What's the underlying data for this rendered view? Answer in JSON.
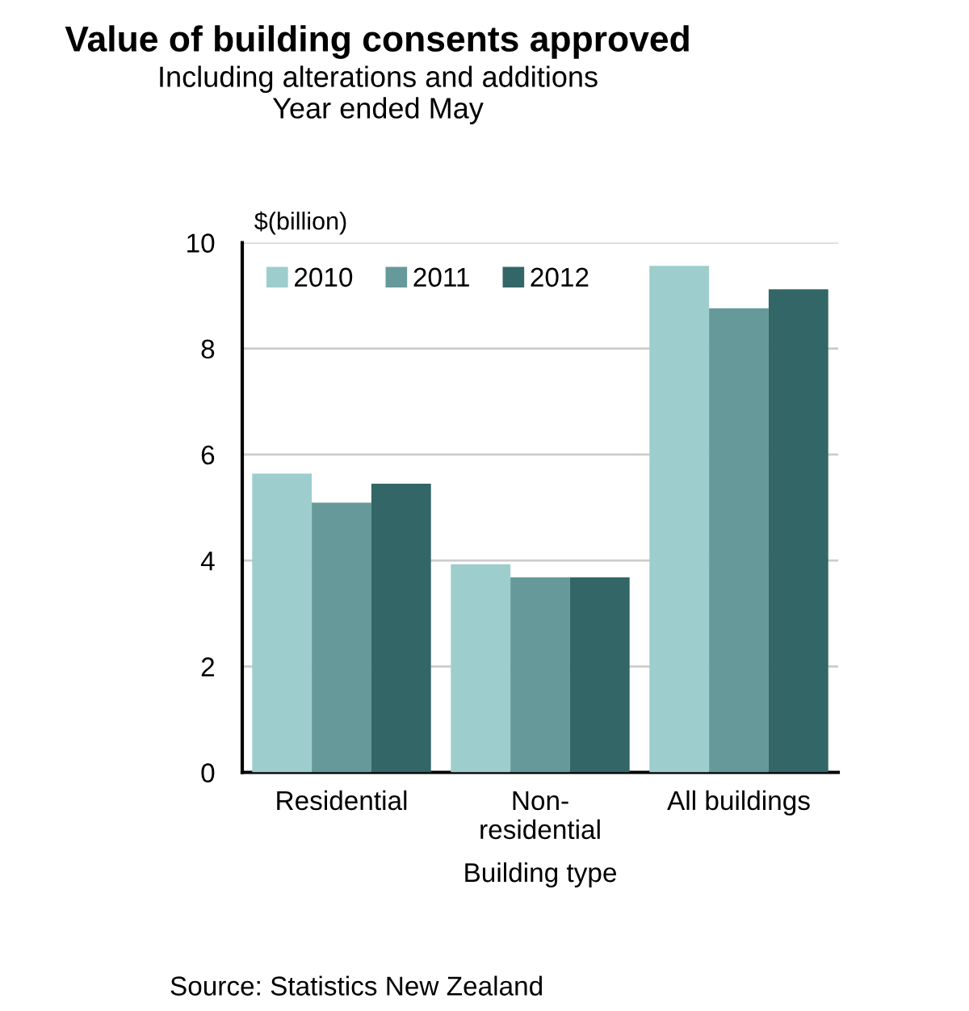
{
  "chart_data": {
    "type": "bar",
    "title": "Value of building consents approved",
    "subtitle": "Including alterations and additions\nYear ended May",
    "ylabel": "$(billion)",
    "xlabel": "Building type",
    "categories": [
      "Residential",
      "Non-\nresidential",
      "All buildings"
    ],
    "series": [
      {
        "name": "2010",
        "color": "#9dcdcd",
        "values": [
          5.64,
          3.93,
          9.56
        ]
      },
      {
        "name": "2011",
        "color": "#669999",
        "values": [
          5.09,
          3.68,
          8.76
        ]
      },
      {
        "name": "2012",
        "color": "#336666",
        "values": [
          5.45,
          3.68,
          9.12
        ]
      }
    ],
    "ylim": [
      0,
      10
    ],
    "yticks": [
      0,
      2,
      4,
      6,
      8,
      10
    ],
    "grid": "y",
    "legend": "top left",
    "annotations": [
      "Source: Statistics New Zealand"
    ]
  }
}
